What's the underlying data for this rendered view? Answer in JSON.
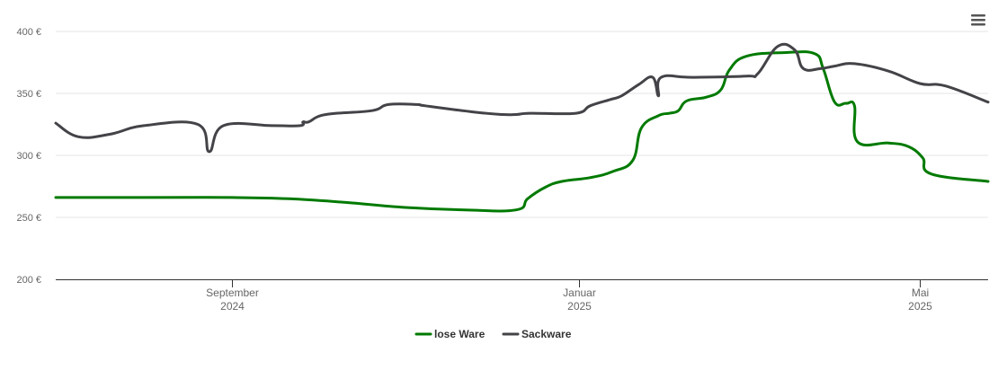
{
  "chart_data": {
    "type": "line",
    "title": "",
    "xlabel": "",
    "ylabel": "",
    "ylim": [
      200,
      400
    ],
    "y_ticks": [
      "200 €",
      "250 €",
      "300 €",
      "350 €",
      "400 €"
    ],
    "x_range": [
      "2024-07-01",
      "2025-05-25"
    ],
    "x_ticks": [
      {
        "date": "2024-09-01",
        "line1": "September",
        "line2": "2024"
      },
      {
        "date": "2025-01-01",
        "line1": "Januar",
        "line2": "2025"
      },
      {
        "date": "2025-05-01",
        "line1": "Mai",
        "line2": "2025"
      }
    ],
    "grid": true,
    "legend_position": "bottom-center",
    "series": [
      {
        "name": "lose Ware",
        "color": "#007a00",
        "points": [
          [
            "2024-07-01",
            266
          ],
          [
            "2024-08-01",
            266
          ],
          [
            "2024-09-01",
            266
          ],
          [
            "2024-09-21",
            265
          ],
          [
            "2024-10-11",
            262
          ],
          [
            "2024-11-01",
            258
          ],
          [
            "2024-11-22",
            256
          ],
          [
            "2024-12-10",
            256
          ],
          [
            "2024-12-14",
            265
          ],
          [
            "2024-12-20",
            274
          ],
          [
            "2024-12-26",
            279
          ],
          [
            "2025-01-05",
            282
          ],
          [
            "2025-01-13",
            287
          ],
          [
            "2025-01-20",
            296
          ],
          [
            "2025-01-23",
            322
          ],
          [
            "2025-01-29",
            332
          ],
          [
            "2025-02-02",
            334
          ],
          [
            "2025-02-05",
            336
          ],
          [
            "2025-02-08",
            344
          ],
          [
            "2025-02-15",
            347
          ],
          [
            "2025-02-20",
            353
          ],
          [
            "2025-02-23",
            369
          ],
          [
            "2025-03-01",
            380
          ],
          [
            "2025-03-15",
            383
          ],
          [
            "2025-03-25",
            382
          ],
          [
            "2025-03-28",
            370
          ],
          [
            "2025-04-01",
            343
          ],
          [
            "2025-04-05",
            342
          ],
          [
            "2025-04-08",
            340
          ],
          [
            "2025-04-09",
            311
          ],
          [
            "2025-04-20",
            310
          ],
          [
            "2025-04-27",
            307
          ],
          [
            "2025-05-02",
            298
          ],
          [
            "2025-05-05",
            285
          ],
          [
            "2025-05-25",
            279
          ]
        ]
      },
      {
        "name": "Sackware",
        "color": "#434348",
        "points": [
          [
            "2024-07-01",
            326
          ],
          [
            "2024-07-09",
            315
          ],
          [
            "2024-07-20",
            317
          ],
          [
            "2024-08-01",
            324
          ],
          [
            "2024-08-20",
            325
          ],
          [
            "2024-08-24",
            303
          ],
          [
            "2024-08-29",
            324
          ],
          [
            "2024-09-15",
            324
          ],
          [
            "2024-09-25",
            324
          ],
          [
            "2024-09-26",
            327
          ],
          [
            "2024-09-28",
            327
          ],
          [
            "2024-10-04",
            333
          ],
          [
            "2024-10-20",
            336
          ],
          [
            "2024-10-26",
            341
          ],
          [
            "2024-11-05",
            341
          ],
          [
            "2024-11-08",
            340
          ],
          [
            "2024-11-25",
            335
          ],
          [
            "2024-12-05",
            333
          ],
          [
            "2024-12-10",
            333
          ],
          [
            "2024-12-15",
            334
          ],
          [
            "2024-12-31",
            334
          ],
          [
            "2025-01-05",
            340
          ],
          [
            "2025-01-12",
            345
          ],
          [
            "2025-01-16",
            348
          ],
          [
            "2025-01-22",
            357
          ],
          [
            "2025-01-27",
            363
          ],
          [
            "2025-01-29",
            348
          ],
          [
            "2025-01-30",
            363
          ],
          [
            "2025-02-10",
            363
          ],
          [
            "2025-03-01",
            364
          ],
          [
            "2025-03-05",
            366
          ],
          [
            "2025-03-12",
            388
          ],
          [
            "2025-03-18",
            385
          ],
          [
            "2025-03-21",
            370
          ],
          [
            "2025-03-27",
            370
          ],
          [
            "2025-04-01",
            372
          ],
          [
            "2025-04-08",
            374
          ],
          [
            "2025-04-20",
            368
          ],
          [
            "2025-05-01",
            358
          ],
          [
            "2025-05-10",
            356
          ],
          [
            "2025-05-25",
            343
          ]
        ]
      }
    ]
  },
  "menu": {
    "icon": "hamburger-menu-icon"
  }
}
